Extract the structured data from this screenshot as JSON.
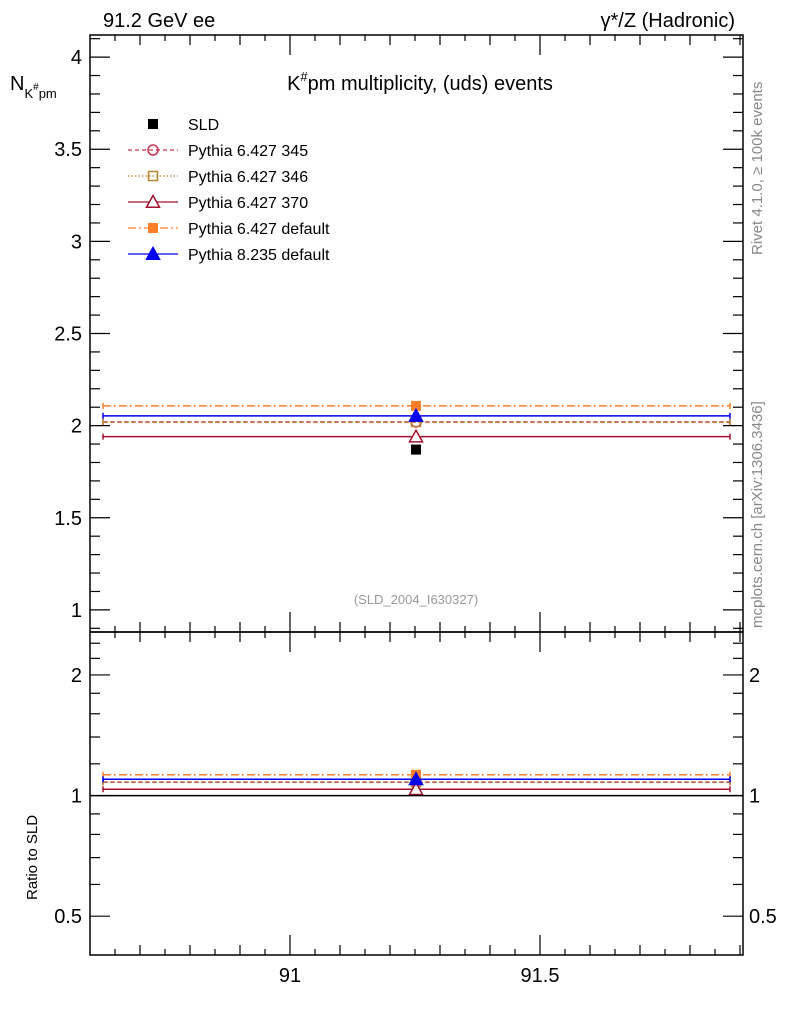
{
  "header": {
    "left": "91.2 GeV ee",
    "right": "γ*/Z (Hadronic)"
  },
  "side_labels": {
    "rivet": "Rivet 4.1.0, ≥ 100k events",
    "mcplots": "mcplots.cern.ch [arXiv:1306.3436]"
  },
  "watermark": "(SLD_2004_I630327)",
  "chart_data": [
    {
      "type": "scatter",
      "panel": "main",
      "title": "K#pm multiplicity, (uds) events",
      "title_main": "K",
      "title_sup": "#",
      "title_rest": "pm multiplicity, (uds) events",
      "ylabel": "N_K#pm",
      "ylabel_main": "N",
      "ylabel_sub": "K",
      "ylabel_subsup": "#",
      "ylabel_subrest": "pm",
      "xlim": [
        90.6,
        91.906
      ],
      "ylim": [
        0.88,
        4.12
      ],
      "yticks": [
        "1",
        "1.5",
        "2",
        "2.5",
        "3",
        "3.5",
        "4"
      ],
      "legend_position": "top-left",
      "bin": [
        90.626,
        91.88
      ],
      "x": 91.252,
      "series": [
        {
          "name": "SLD",
          "value": 1.87,
          "color": "#000000",
          "marker": "filled-square",
          "line": "none"
        },
        {
          "name": "Pythia 6.427 345",
          "value": 2.02,
          "color": "#c8334f",
          "marker": "open-circle",
          "line": "dashed"
        },
        {
          "name": "Pythia 6.427 346",
          "value": 2.02,
          "color": "#b8862e",
          "marker": "open-square",
          "line": "dotted"
        },
        {
          "name": "Pythia 6.427 370",
          "value": 1.94,
          "color": "#a0102c",
          "marker": "open-triangle",
          "line": "solid"
        },
        {
          "name": "Pythia 6.427 default",
          "value": 2.107,
          "color": "#ff7f2a",
          "marker": "filled-square",
          "line": "dashdot"
        },
        {
          "name": "Pythia 8.235 default",
          "value": 2.053,
          "color": "#0000ee",
          "marker": "filled-triangle",
          "line": "solid"
        }
      ]
    },
    {
      "type": "scatter",
      "panel": "ratio",
      "ylabel": "Ratio to SLD",
      "yscale": "log",
      "ylim": [
        0.4,
        2.56
      ],
      "yticks": [
        "0.5",
        "1",
        "2"
      ],
      "xticks": [
        "91",
        "91.5"
      ],
      "values": [
        1.0,
        1.08,
        1.08,
        1.037,
        1.127,
        1.098
      ]
    }
  ]
}
